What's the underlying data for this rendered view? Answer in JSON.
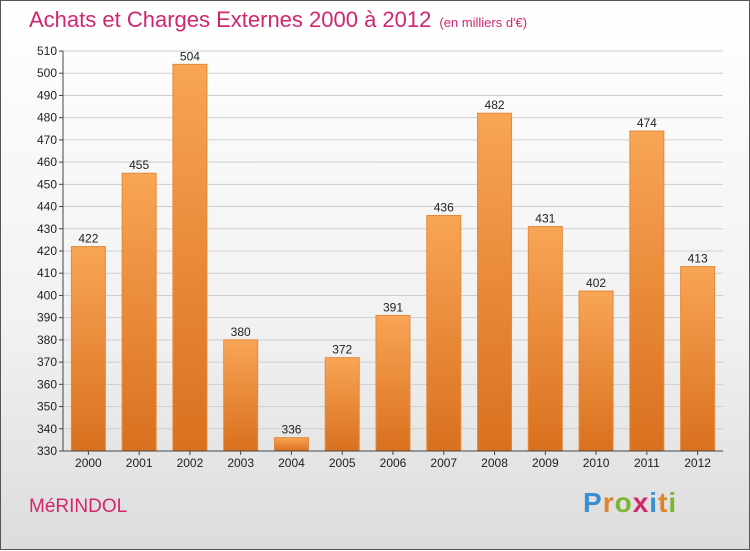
{
  "title": "Achats et Charges Externes 2000 à 2012",
  "unit": "(en milliers d'€)",
  "commune": "MéRINDOL",
  "brand": {
    "letters": [
      "P",
      "r",
      "o",
      "x",
      "i",
      "t",
      "i"
    ],
    "colors": [
      "#3a8fd1",
      "#e0842a",
      "#7db530",
      "#d2266f",
      "#3a8fd1",
      "#e0842a",
      "#7db530"
    ]
  },
  "colors": {
    "title": "#d2266f",
    "bar_top": "#f8a556",
    "bar_bottom": "#d9701e"
  },
  "chart_data": {
    "type": "bar",
    "categories": [
      "2000",
      "2001",
      "2002",
      "2003",
      "2004",
      "2005",
      "2006",
      "2007",
      "2008",
      "2009",
      "2010",
      "2011",
      "2012"
    ],
    "values": [
      422,
      455,
      504,
      380,
      336,
      372,
      391,
      436,
      482,
      431,
      402,
      474,
      413
    ],
    "ylim": [
      330,
      510
    ],
    "yticks": [
      330,
      340,
      350,
      360,
      370,
      380,
      390,
      400,
      410,
      420,
      430,
      440,
      450,
      460,
      470,
      480,
      490,
      500,
      510
    ],
    "grid": true
  }
}
